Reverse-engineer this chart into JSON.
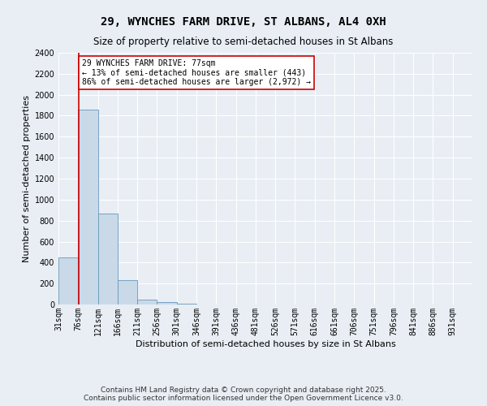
{
  "title": "29, WYNCHES FARM DRIVE, ST ALBANS, AL4 0XH",
  "subtitle": "Size of property relative to semi-detached houses in St Albans",
  "xlabel": "Distribution of semi-detached houses by size in St Albans",
  "ylabel": "Number of semi-detached properties",
  "bin_labels": [
    "31sqm",
    "76sqm",
    "121sqm",
    "166sqm",
    "211sqm",
    "256sqm",
    "301sqm",
    "346sqm",
    "391sqm",
    "436sqm",
    "481sqm",
    "526sqm",
    "571sqm",
    "616sqm",
    "661sqm",
    "706sqm",
    "751sqm",
    "796sqm",
    "841sqm",
    "886sqm",
    "931sqm"
  ],
  "bin_edges": [
    31,
    76,
    121,
    166,
    211,
    256,
    301,
    346,
    391,
    436,
    481,
    526,
    571,
    616,
    661,
    706,
    751,
    796,
    841,
    886,
    931
  ],
  "bar_heights": [
    450,
    1860,
    870,
    235,
    50,
    25,
    8,
    2,
    1,
    0,
    0,
    0,
    0,
    0,
    0,
    0,
    0,
    0,
    0,
    0
  ],
  "bar_color": "#c9d9e8",
  "bar_edge_color": "#6699bb",
  "property_size": 77,
  "property_label": "29 WYNCHES FARM DRIVE: 77sqm",
  "pct_smaller": 13,
  "pct_larger": 86,
  "n_smaller": 443,
  "n_larger": 2972,
  "vline_color": "#cc0000",
  "annotation_box_color": "#cc0000",
  "ylim": [
    0,
    2400
  ],
  "yticks": [
    0,
    200,
    400,
    600,
    800,
    1000,
    1200,
    1400,
    1600,
    1800,
    2000,
    2200,
    2400
  ],
  "bg_color": "#e8eef4",
  "plot_bg_color": "#e8eef4",
  "grid_color": "#ffffff",
  "footer": "Contains HM Land Registry data © Crown copyright and database right 2025.\nContains public sector information licensed under the Open Government Licence v3.0.",
  "title_fontsize": 10,
  "subtitle_fontsize": 8.5,
  "axis_label_fontsize": 8,
  "tick_fontsize": 7,
  "footer_fontsize": 6.5
}
